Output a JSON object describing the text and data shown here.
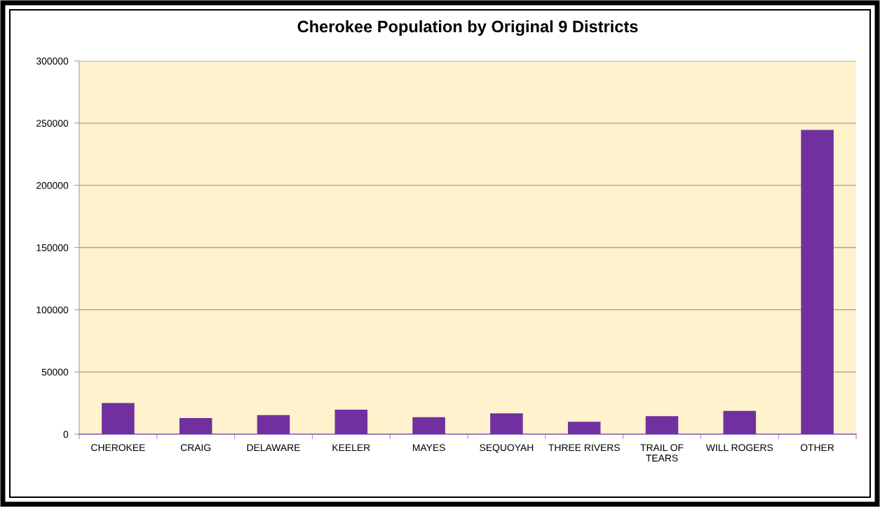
{
  "chart_data": {
    "type": "bar",
    "title": "Cherokee Population by Original 9 Districts",
    "categories": [
      "CHEROKEE",
      "CRAIG",
      "DELAWARE",
      "KEELER",
      "MAYES",
      "SEQUOYAH",
      "THREE RIVERS",
      "TRAIL OF\nTEARS",
      "WILL ROGERS",
      "OTHER"
    ],
    "values": [
      25000,
      13000,
      15400,
      19700,
      13600,
      16800,
      10000,
      14500,
      18700,
      244500
    ],
    "color": "#7030a0",
    "ylim": [
      0,
      300000
    ],
    "yticks": [
      0,
      50000,
      100000,
      150000,
      200000,
      250000,
      300000
    ],
    "grid": "y",
    "legend": false
  }
}
